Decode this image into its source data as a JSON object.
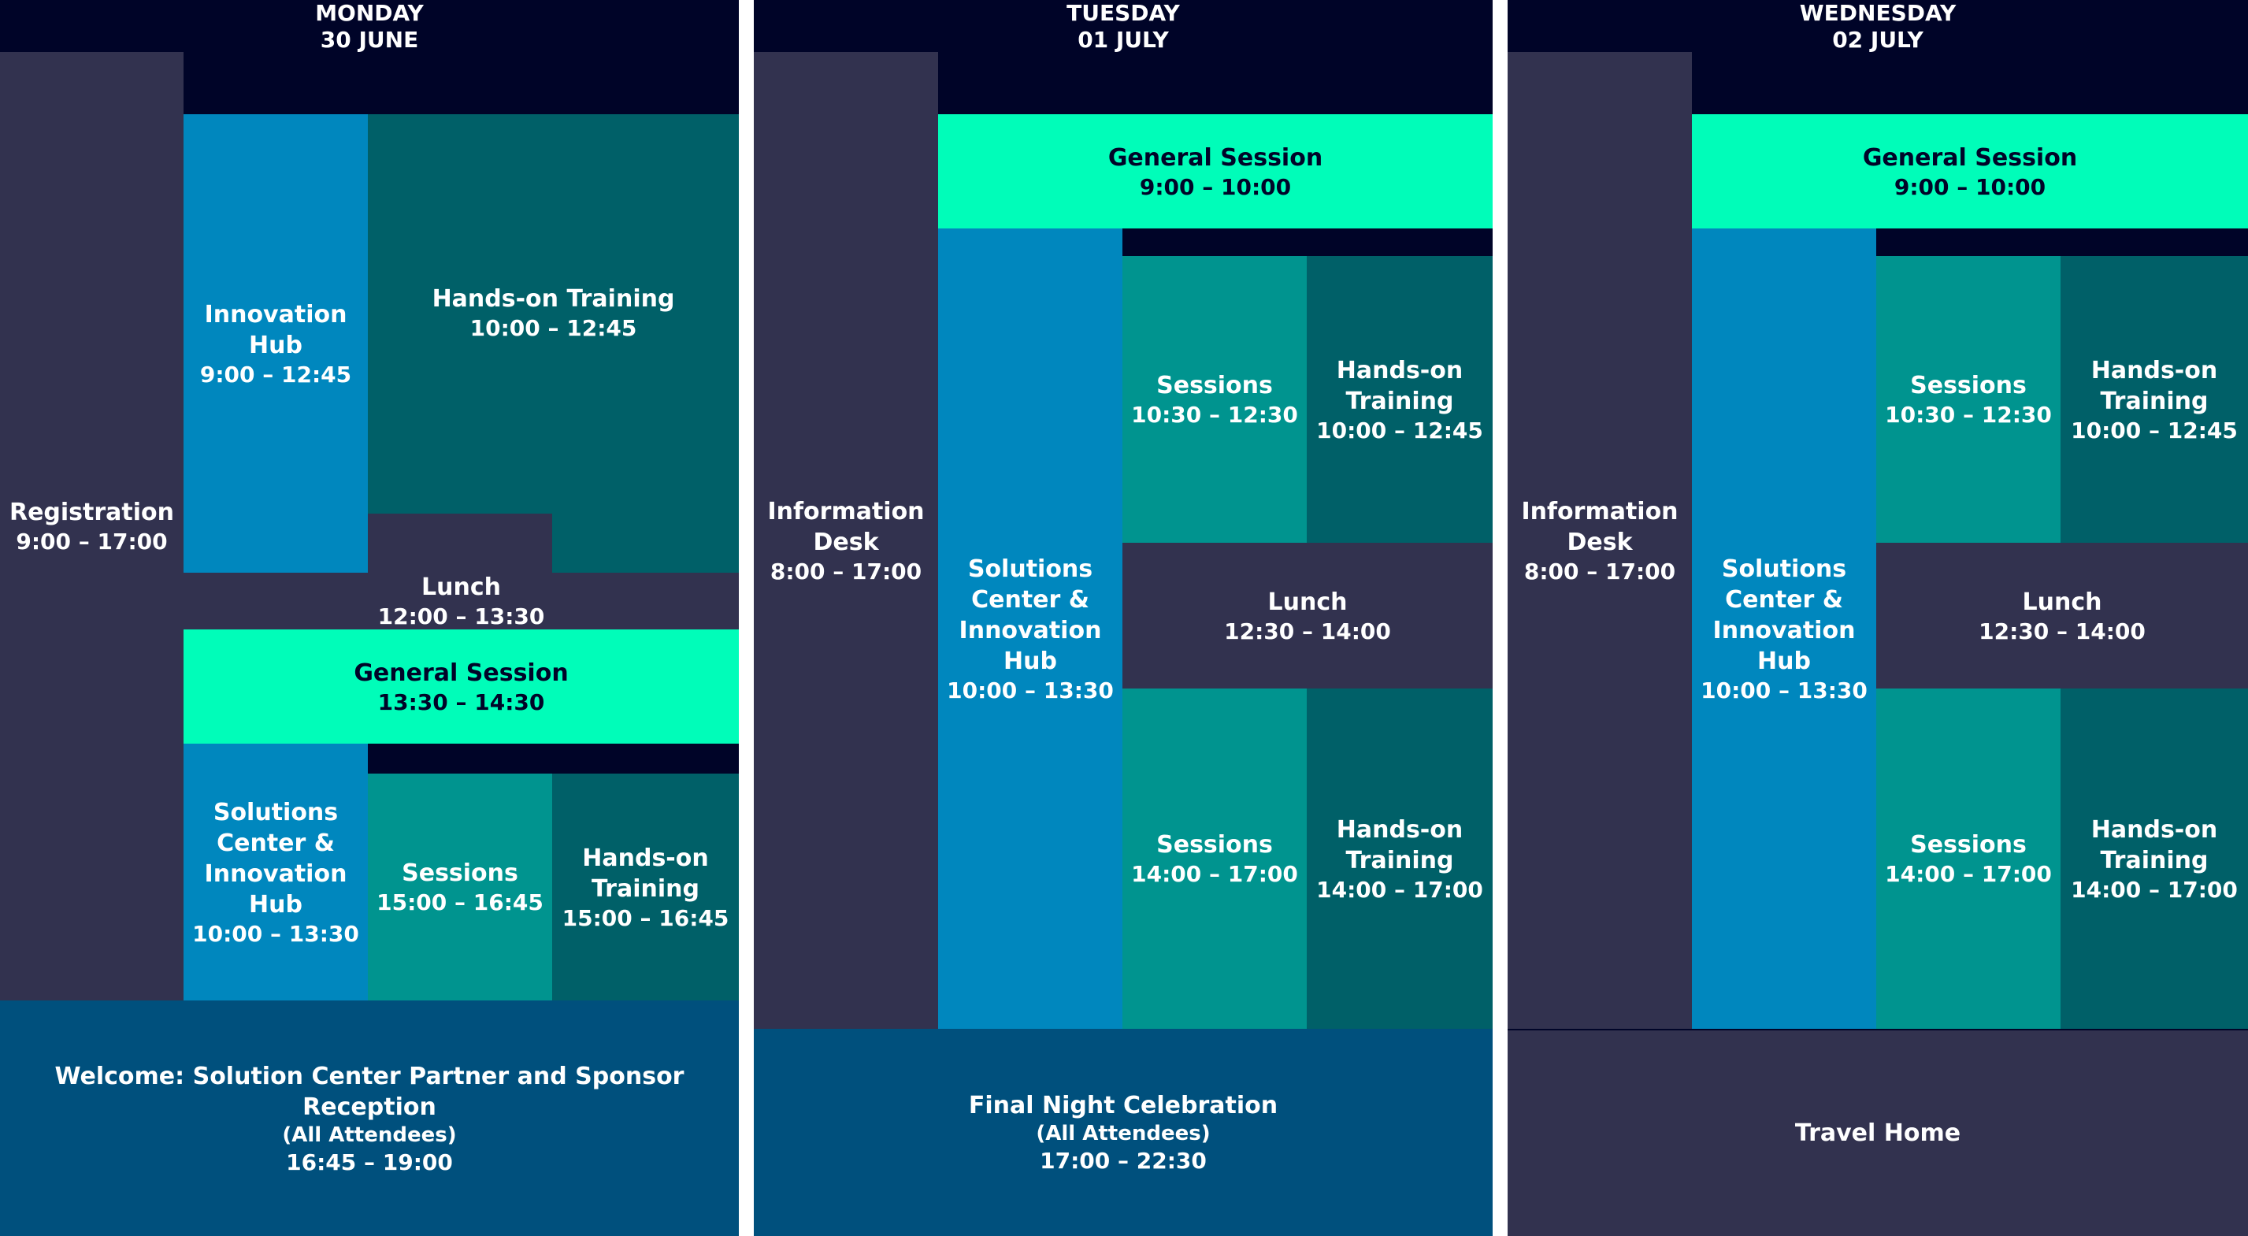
{
  "days": [
    {
      "name": "MONDAY",
      "date": "30 JUNE",
      "registration": {
        "title": "Registration",
        "time": "9:00 – 17:00"
      },
      "innovation_hub": {
        "title": "Innovation Hub",
        "time": "9:00 – 12:45"
      },
      "hands_on_am": {
        "title": "Hands-on Training",
        "time": "10:00 – 12:45"
      },
      "lunch": {
        "title": "Lunch",
        "time": "12:00 – 13:30"
      },
      "general_session": {
        "title": "General Session",
        "time": "13:30 – 14:30"
      },
      "solutions_center": {
        "title": "Solutions Center & Innovation Hub",
        "time": "10:00 – 13:30"
      },
      "sessions_pm": {
        "title": "Sessions",
        "time": "15:00 – 16:45"
      },
      "hands_on_pm": {
        "title": "Hands-on Training",
        "time": "15:00 – 16:45"
      },
      "evening": {
        "title": "Welcome: Solution Center Partner and Sponsor Reception",
        "note": "(All Attendees)",
        "time": "16:45 – 19:00"
      }
    },
    {
      "name": "TUESDAY",
      "date": "01 JULY",
      "information_desk": {
        "title": "Information Desk",
        "time": "8:00 – 17:00"
      },
      "general_session": {
        "title": "General Session",
        "time": "9:00 – 10:00"
      },
      "solutions_center": {
        "title": "Solutions Center & Innovation Hub",
        "time": "10:00 – 13:30"
      },
      "sessions_am": {
        "title": "Sessions",
        "time": "10:30 – 12:30"
      },
      "hands_on_am": {
        "title": "Hands-on Training",
        "time": "10:00 – 12:45"
      },
      "lunch": {
        "title": "Lunch",
        "time": "12:30 – 14:00"
      },
      "sessions_pm": {
        "title": "Sessions",
        "time": "14:00 – 17:00"
      },
      "hands_on_pm": {
        "title": "Hands-on Training",
        "time": "14:00 – 17:00"
      },
      "evening": {
        "title": "Final Night Celebration",
        "note": "(All Attendees)",
        "time": "17:00 – 22:30"
      }
    },
    {
      "name": "WEDNESDAY",
      "date": "02 JULY",
      "information_desk": {
        "title": "Information Desk",
        "time": "8:00 – 17:00"
      },
      "general_session": {
        "title": "General Session",
        "time": "9:00 – 10:00"
      },
      "solutions_center": {
        "title": "Solutions Center & Innovation Hub",
        "time": "10:00 – 13:30"
      },
      "sessions_am": {
        "title": "Sessions",
        "time": "10:30 – 12:30"
      },
      "hands_on_am": {
        "title": "Hands-on Training",
        "time": "10:00 – 12:45"
      },
      "lunch": {
        "title": "Lunch",
        "time": "12:30 – 14:00"
      },
      "sessions_pm": {
        "title": "Sessions",
        "time": "14:00 – 17:00"
      },
      "hands_on_pm": {
        "title": "Hands-on Training",
        "time": "14:00 – 17:00"
      },
      "evening": {
        "title": "Travel Home"
      }
    }
  ],
  "colors": {
    "background": "#000428",
    "slate": "#32324f",
    "blue": "#0087be",
    "teal": "#006068",
    "mid_teal": "#00948f",
    "mint": "#00fdb9",
    "navy": "#00507d"
  }
}
